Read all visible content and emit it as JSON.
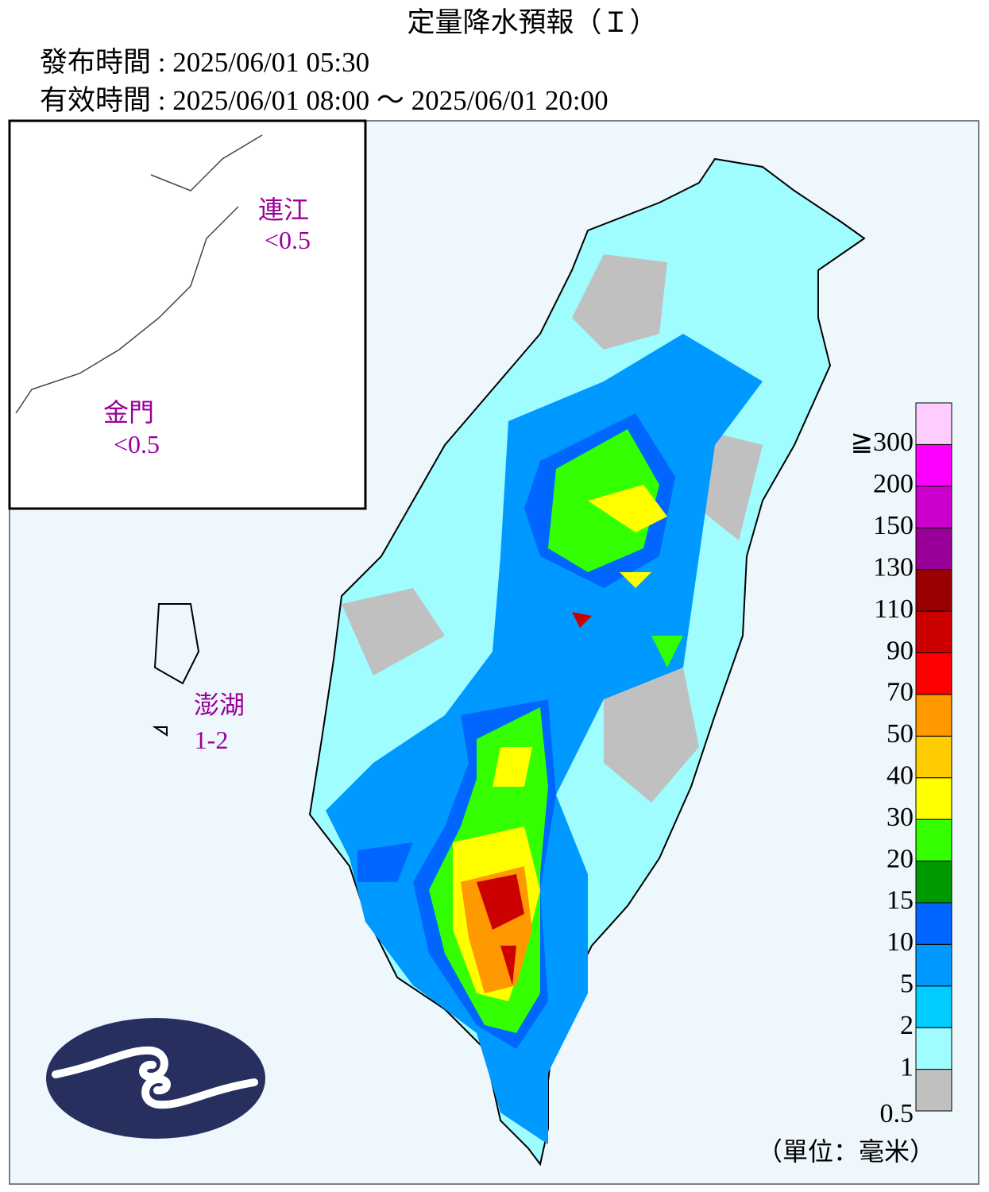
{
  "header": {
    "title": "定量降水預報（Ｉ）",
    "issued": "發布時間 : 2025/06/01 05:30",
    "valid": "有效時間 : 2025/06/01 08:00 ～ 2025/06/01 20:00"
  },
  "regions": [
    {
      "name": "連江",
      "value": "<0.5"
    },
    {
      "name": "金門",
      "value": "<0.5"
    },
    {
      "name": "澎湖",
      "value": "1-2"
    }
  ],
  "legend": {
    "unit": "（單位：毫米）",
    "levels": [
      {
        "label": "0.5",
        "color": "#c0c0c0"
      },
      {
        "label": "1",
        "color": "#9ffcff"
      },
      {
        "label": "2",
        "color": "#00ccff"
      },
      {
        "label": "5",
        "color": "#0099ff"
      },
      {
        "label": "10",
        "color": "#0066ff"
      },
      {
        "label": "15",
        "color": "#009900"
      },
      {
        "label": "20",
        "color": "#33ff00"
      },
      {
        "label": "30",
        "color": "#ffff00"
      },
      {
        "label": "40",
        "color": "#ffcc00"
      },
      {
        "label": "50",
        "color": "#ff9900"
      },
      {
        "label": "70",
        "color": "#ff0000"
      },
      {
        "label": "90",
        "color": "#cc0000"
      },
      {
        "label": "110",
        "color": "#990000"
      },
      {
        "label": "130",
        "color": "#990099"
      },
      {
        "label": "150",
        "color": "#cc00cc"
      },
      {
        "label": "200",
        "color": "#ff00ff"
      },
      {
        "label": "≧300",
        "color": "#ffccff"
      }
    ]
  }
}
